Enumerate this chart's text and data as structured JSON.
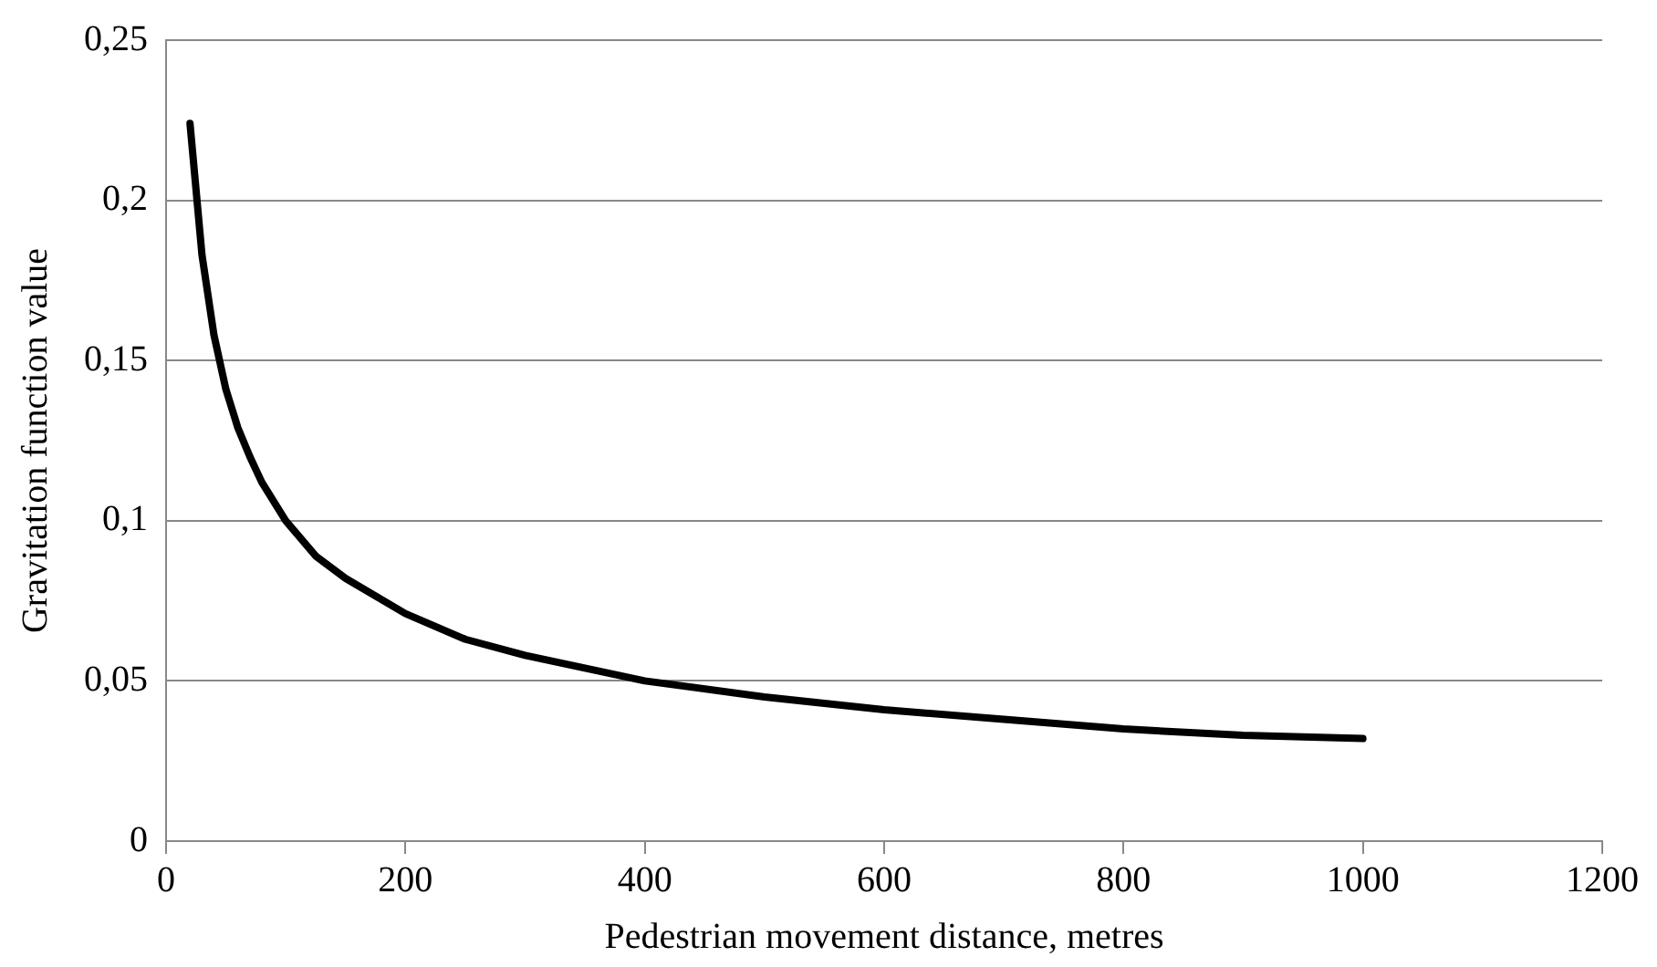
{
  "chart_data": {
    "type": "line",
    "xlabel": "Pedestrian movement distance, metres",
    "ylabel": "Gravitation function value",
    "x": [
      20,
      30,
      40,
      50,
      60,
      70,
      80,
      100,
      125,
      150,
      200,
      250,
      300,
      400,
      500,
      600,
      700,
      800,
      900,
      1000
    ],
    "series": [
      {
        "color": "#000000",
        "values": [
          0.224,
          0.183,
          0.158,
          0.141,
          0.129,
          0.12,
          0.112,
          0.1,
          0.089,
          0.082,
          0.071,
          0.063,
          0.058,
          0.05,
          0.045,
          0.041,
          0.038,
          0.035,
          0.033,
          0.032
        ]
      }
    ],
    "xlim": [
      0,
      1200
    ],
    "xticks": [
      0,
      200,
      400,
      600,
      800,
      1000,
      1200
    ],
    "ylim": [
      0,
      0.25
    ],
    "yticks": [
      0,
      {
        "value": 0.05,
        "label": "0,05"
      },
      {
        "value": 0.1,
        "label": "0,1"
      },
      {
        "value": 0.15,
        "label": "0,15"
      },
      {
        "value": 0.2,
        "label": "0,2"
      },
      {
        "value": 0.25,
        "label": "0,25"
      }
    ],
    "grid": "y",
    "legend": false,
    "marker": "none",
    "line_style": "solid"
  }
}
